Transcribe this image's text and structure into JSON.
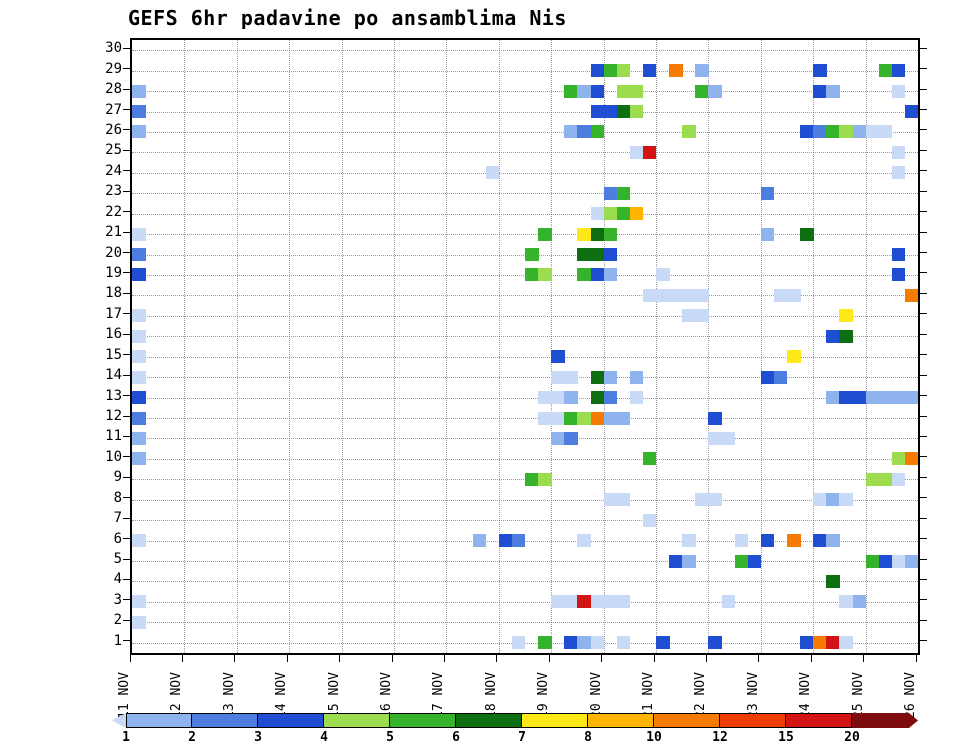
{
  "title": "GEFS 6hr padavine po ansamblima Nis",
  "chart_data": {
    "type": "heatmap",
    "description": "GEFS ensemble 6-hourly precipitation plume grid: ensemble members 1-30 (y) vs 6hr time steps from 11 NOV to 26 NOV (x); colored cells give precipitation amount per legend",
    "x_axis": {
      "tick_labels": [
        "11 NOV",
        "12 NOV",
        "13 NOV",
        "14 NOV",
        "15 NOV",
        "16 NOV",
        "17 NOV",
        "18 NOV",
        "19 NOV",
        "20 NOV",
        "21 NOV",
        "22 NOV",
        "23 NOV",
        "24 NOV",
        "25 NOV",
        "26 NOV"
      ],
      "steps_per_day": 4,
      "total_steps": 60,
      "grid": "dotted vertical line at each day"
    },
    "y_axis": {
      "tick_labels": [
        "30",
        "29",
        "28",
        "27",
        "26",
        "25",
        "24",
        "23",
        "22",
        "21",
        "20",
        "19",
        "18",
        "17",
        "16",
        "15",
        "14",
        "13",
        "12",
        "11",
        "10",
        "9",
        "8",
        "7",
        "6",
        "5",
        "4",
        "3",
        "2",
        "1"
      ],
      "min": 1,
      "max": 30,
      "grid": "dotted horizontal line at each member"
    },
    "palette": {
      "l1": "#c9daf6",
      "l2": "#8fb3ec",
      "l3": "#4e7de0",
      "l4": "#1f4ed2",
      "g1": "#9bdd4e",
      "g2": "#35b32a",
      "g3": "#0e6f12",
      "y": "#ffe818",
      "o1": "#ffb400",
      "o2": "#f57c00",
      "r1": "#ee3d00",
      "r2": "#d31414",
      "r3": "#7e0c0c"
    },
    "legend": {
      "tick_labels": [
        "1",
        "2",
        "3",
        "4",
        "5",
        "6",
        "7",
        "8",
        "10",
        "12",
        "15",
        "20"
      ],
      "segment_colors": [
        "l1",
        "l2",
        "l3",
        "l4",
        "g1",
        "g2",
        "g3",
        "y",
        "o1",
        "o2",
        "r1",
        "r2",
        "r3"
      ],
      "left_arrow_color": "l1",
      "right_arrow_color": "r3"
    },
    "cells": [
      {
        "m": 29,
        "t": 35,
        "c": "l4"
      },
      {
        "m": 29,
        "t": 36,
        "c": "g2"
      },
      {
        "m": 29,
        "t": 37,
        "c": "g1"
      },
      {
        "m": 29,
        "t": 39,
        "c": "l4"
      },
      {
        "m": 29,
        "t": 41,
        "c": "o2"
      },
      {
        "m": 29,
        "t": 43,
        "c": "l2"
      },
      {
        "m": 29,
        "t": 52,
        "c": "l4"
      },
      {
        "m": 29,
        "t": 57,
        "c": "g2"
      },
      {
        "m": 29,
        "t": 58,
        "c": "l4"
      },
      {
        "m": 28,
        "t": 0,
        "c": "l2"
      },
      {
        "m": 28,
        "t": 33,
        "c": "g2"
      },
      {
        "m": 28,
        "t": 34,
        "c": "l2"
      },
      {
        "m": 28,
        "t": 35,
        "c": "l4"
      },
      {
        "m": 28,
        "t": 37,
        "c": "g1"
      },
      {
        "m": 28,
        "t": 38,
        "c": "g1"
      },
      {
        "m": 28,
        "t": 43,
        "c": "g2"
      },
      {
        "m": 28,
        "t": 44,
        "c": "l2"
      },
      {
        "m": 28,
        "t": 52,
        "c": "l4"
      },
      {
        "m": 28,
        "t": 53,
        "c": "l2"
      },
      {
        "m": 28,
        "t": 58,
        "c": "l1"
      },
      {
        "m": 27,
        "t": 0,
        "c": "l3"
      },
      {
        "m": 27,
        "t": 35,
        "c": "l4"
      },
      {
        "m": 27,
        "t": 36,
        "c": "l4"
      },
      {
        "m": 27,
        "t": 37,
        "c": "g3"
      },
      {
        "m": 27,
        "t": 38,
        "c": "g1"
      },
      {
        "m": 27,
        "t": 59,
        "c": "l4"
      },
      {
        "m": 26,
        "t": 0,
        "c": "l2"
      },
      {
        "m": 26,
        "t": 33,
        "c": "l2"
      },
      {
        "m": 26,
        "t": 34,
        "c": "l3"
      },
      {
        "m": 26,
        "t": 35,
        "c": "g2"
      },
      {
        "m": 26,
        "t": 42,
        "c": "g1"
      },
      {
        "m": 26,
        "t": 51,
        "c": "l4"
      },
      {
        "m": 26,
        "t": 52,
        "c": "l3"
      },
      {
        "m": 26,
        "t": 53,
        "c": "g2"
      },
      {
        "m": 26,
        "t": 54,
        "c": "g1"
      },
      {
        "m": 26,
        "t": 55,
        "c": "l2"
      },
      {
        "m": 26,
        "t": 56,
        "c": "l1"
      },
      {
        "m": 26,
        "t": 57,
        "c": "l1"
      },
      {
        "m": 25,
        "t": 38,
        "c": "l1"
      },
      {
        "m": 25,
        "t": 39,
        "c": "r2"
      },
      {
        "m": 25,
        "t": 58,
        "c": "l1"
      },
      {
        "m": 24,
        "t": 27,
        "c": "l1"
      },
      {
        "m": 24,
        "t": 58,
        "c": "l1"
      },
      {
        "m": 23,
        "t": 36,
        "c": "l3"
      },
      {
        "m": 23,
        "t": 37,
        "c": "g2"
      },
      {
        "m": 23,
        "t": 48,
        "c": "l3"
      },
      {
        "m": 22,
        "t": 35,
        "c": "l1"
      },
      {
        "m": 22,
        "t": 36,
        "c": "g1"
      },
      {
        "m": 22,
        "t": 37,
        "c": "g2"
      },
      {
        "m": 22,
        "t": 38,
        "c": "o1"
      },
      {
        "m": 21,
        "t": 0,
        "c": "l1"
      },
      {
        "m": 21,
        "t": 31,
        "c": "g2"
      },
      {
        "m": 21,
        "t": 34,
        "c": "y"
      },
      {
        "m": 21,
        "t": 35,
        "c": "g3"
      },
      {
        "m": 21,
        "t": 36,
        "c": "g2"
      },
      {
        "m": 21,
        "t": 48,
        "c": "l2"
      },
      {
        "m": 21,
        "t": 51,
        "c": "g3"
      },
      {
        "m": 20,
        "t": 0,
        "c": "l3"
      },
      {
        "m": 20,
        "t": 30,
        "c": "g2"
      },
      {
        "m": 20,
        "t": 34,
        "c": "g3"
      },
      {
        "m": 20,
        "t": 35,
        "c": "g3"
      },
      {
        "m": 20,
        "t": 36,
        "c": "l4"
      },
      {
        "m": 20,
        "t": 58,
        "c": "l4"
      },
      {
        "m": 19,
        "t": 0,
        "c": "l4"
      },
      {
        "m": 19,
        "t": 30,
        "c": "g2"
      },
      {
        "m": 19,
        "t": 31,
        "c": "g1"
      },
      {
        "m": 19,
        "t": 34,
        "c": "g2"
      },
      {
        "m": 19,
        "t": 35,
        "c": "l4"
      },
      {
        "m": 19,
        "t": 36,
        "c": "l2"
      },
      {
        "m": 19,
        "t": 40,
        "c": "l1"
      },
      {
        "m": 19,
        "t": 58,
        "c": "l4"
      },
      {
        "m": 18,
        "t": 39,
        "c": "l1"
      },
      {
        "m": 18,
        "t": 40,
        "c": "l1"
      },
      {
        "m": 18,
        "t": 41,
        "c": "l1"
      },
      {
        "m": 18,
        "t": 42,
        "c": "l1"
      },
      {
        "m": 18,
        "t": 43,
        "c": "l1"
      },
      {
        "m": 18,
        "t": 49,
        "c": "l1"
      },
      {
        "m": 18,
        "t": 50,
        "c": "l1"
      },
      {
        "m": 18,
        "t": 59,
        "c": "o2"
      },
      {
        "m": 17,
        "t": 0,
        "c": "l1"
      },
      {
        "m": 17,
        "t": 42,
        "c": "l1"
      },
      {
        "m": 17,
        "t": 43,
        "c": "l1"
      },
      {
        "m": 17,
        "t": 54,
        "c": "y"
      },
      {
        "m": 16,
        "t": 0,
        "c": "l1"
      },
      {
        "m": 16,
        "t": 53,
        "c": "l4"
      },
      {
        "m": 16,
        "t": 54,
        "c": "g3"
      },
      {
        "m": 15,
        "t": 0,
        "c": "l1"
      },
      {
        "m": 15,
        "t": 32,
        "c": "l4"
      },
      {
        "m": 15,
        "t": 50,
        "c": "y"
      },
      {
        "m": 14,
        "t": 0,
        "c": "l1"
      },
      {
        "m": 14,
        "t": 32,
        "c": "l1"
      },
      {
        "m": 14,
        "t": 33,
        "c": "l1"
      },
      {
        "m": 14,
        "t": 35,
        "c": "g3"
      },
      {
        "m": 14,
        "t": 36,
        "c": "l2"
      },
      {
        "m": 14,
        "t": 38,
        "c": "l2"
      },
      {
        "m": 14,
        "t": 48,
        "c": "l4"
      },
      {
        "m": 14,
        "t": 49,
        "c": "l3"
      },
      {
        "m": 13,
        "t": 0,
        "c": "l4"
      },
      {
        "m": 13,
        "t": 31,
        "c": "l1"
      },
      {
        "m": 13,
        "t": 32,
        "c": "l1"
      },
      {
        "m": 13,
        "t": 33,
        "c": "l2"
      },
      {
        "m": 13,
        "t": 35,
        "c": "g3"
      },
      {
        "m": 13,
        "t": 36,
        "c": "l3"
      },
      {
        "m": 13,
        "t": 38,
        "c": "l1"
      },
      {
        "m": 13,
        "t": 53,
        "c": "l2"
      },
      {
        "m": 13,
        "t": 54,
        "c": "l4"
      },
      {
        "m": 13,
        "t": 55,
        "c": "l4"
      },
      {
        "m": 13,
        "t": 56,
        "c": "l2"
      },
      {
        "m": 13,
        "t": 57,
        "c": "l2"
      },
      {
        "m": 13,
        "t": 58,
        "c": "l2"
      },
      {
        "m": 13,
        "t": 59,
        "c": "l2"
      },
      {
        "m": 12,
        "t": 0,
        "c": "l3"
      },
      {
        "m": 12,
        "t": 31,
        "c": "l1"
      },
      {
        "m": 12,
        "t": 32,
        "c": "l1"
      },
      {
        "m": 12,
        "t": 33,
        "c": "g2"
      },
      {
        "m": 12,
        "t": 34,
        "c": "g1"
      },
      {
        "m": 12,
        "t": 35,
        "c": "o2"
      },
      {
        "m": 12,
        "t": 36,
        "c": "l2"
      },
      {
        "m": 12,
        "t": 37,
        "c": "l2"
      },
      {
        "m": 12,
        "t": 44,
        "c": "l4"
      },
      {
        "m": 11,
        "t": 0,
        "c": "l2"
      },
      {
        "m": 11,
        "t": 32,
        "c": "l2"
      },
      {
        "m": 11,
        "t": 33,
        "c": "l3"
      },
      {
        "m": 11,
        "t": 44,
        "c": "l1"
      },
      {
        "m": 11,
        "t": 45,
        "c": "l1"
      },
      {
        "m": 10,
        "t": 0,
        "c": "l2"
      },
      {
        "m": 10,
        "t": 39,
        "c": "g2"
      },
      {
        "m": 10,
        "t": 58,
        "c": "g1"
      },
      {
        "m": 10,
        "t": 59,
        "c": "o2"
      },
      {
        "m": 9,
        "t": 30,
        "c": "g2"
      },
      {
        "m": 9,
        "t": 31,
        "c": "g1"
      },
      {
        "m": 9,
        "t": 56,
        "c": "g1"
      },
      {
        "m": 9,
        "t": 57,
        "c": "g1"
      },
      {
        "m": 9,
        "t": 58,
        "c": "l1"
      },
      {
        "m": 8,
        "t": 36,
        "c": "l1"
      },
      {
        "m": 8,
        "t": 37,
        "c": "l1"
      },
      {
        "m": 8,
        "t": 43,
        "c": "l1"
      },
      {
        "m": 8,
        "t": 44,
        "c": "l1"
      },
      {
        "m": 8,
        "t": 52,
        "c": "l1"
      },
      {
        "m": 8,
        "t": 53,
        "c": "l2"
      },
      {
        "m": 8,
        "t": 54,
        "c": "l1"
      },
      {
        "m": 7,
        "t": 39,
        "c": "l1"
      },
      {
        "m": 6,
        "t": 0,
        "c": "l1"
      },
      {
        "m": 6,
        "t": 26,
        "c": "l2"
      },
      {
        "m": 6,
        "t": 28,
        "c": "l4"
      },
      {
        "m": 6,
        "t": 29,
        "c": "l3"
      },
      {
        "m": 6,
        "t": 34,
        "c": "l1"
      },
      {
        "m": 6,
        "t": 42,
        "c": "l1"
      },
      {
        "m": 6,
        "t": 46,
        "c": "l1"
      },
      {
        "m": 6,
        "t": 48,
        "c": "l4"
      },
      {
        "m": 6,
        "t": 50,
        "c": "o2"
      },
      {
        "m": 6,
        "t": 52,
        "c": "l4"
      },
      {
        "m": 6,
        "t": 53,
        "c": "l2"
      },
      {
        "m": 5,
        "t": 41,
        "c": "l4"
      },
      {
        "m": 5,
        "t": 42,
        "c": "l2"
      },
      {
        "m": 5,
        "t": 46,
        "c": "g2"
      },
      {
        "m": 5,
        "t": 47,
        "c": "l4"
      },
      {
        "m": 5,
        "t": 56,
        "c": "g2"
      },
      {
        "m": 5,
        "t": 57,
        "c": "l4"
      },
      {
        "m": 5,
        "t": 58,
        "c": "l1"
      },
      {
        "m": 5,
        "t": 59,
        "c": "l2"
      },
      {
        "m": 4,
        "t": 53,
        "c": "g3"
      },
      {
        "m": 3,
        "t": 0,
        "c": "l1"
      },
      {
        "m": 3,
        "t": 32,
        "c": "l1"
      },
      {
        "m": 3,
        "t": 33,
        "c": "l1"
      },
      {
        "m": 3,
        "t": 34,
        "c": "r2"
      },
      {
        "m": 3,
        "t": 35,
        "c": "l1"
      },
      {
        "m": 3,
        "t": 36,
        "c": "l1"
      },
      {
        "m": 3,
        "t": 37,
        "c": "l1"
      },
      {
        "m": 3,
        "t": 45,
        "c": "l1"
      },
      {
        "m": 3,
        "t": 54,
        "c": "l1"
      },
      {
        "m": 3,
        "t": 55,
        "c": "l2"
      },
      {
        "m": 2,
        "t": 0,
        "c": "l1"
      },
      {
        "m": 1,
        "t": 29,
        "c": "l1"
      },
      {
        "m": 1,
        "t": 31,
        "c": "g2"
      },
      {
        "m": 1,
        "t": 33,
        "c": "l4"
      },
      {
        "m": 1,
        "t": 34,
        "c": "l2"
      },
      {
        "m": 1,
        "t": 35,
        "c": "l1"
      },
      {
        "m": 1,
        "t": 37,
        "c": "l1"
      },
      {
        "m": 1,
        "t": 40,
        "c": "l4"
      },
      {
        "m": 1,
        "t": 44,
        "c": "l4"
      },
      {
        "m": 1,
        "t": 51,
        "c": "l4"
      },
      {
        "m": 1,
        "t": 52,
        "c": "o2"
      },
      {
        "m": 1,
        "t": 53,
        "c": "r2"
      },
      {
        "m": 1,
        "t": 54,
        "c": "l1"
      }
    ]
  }
}
